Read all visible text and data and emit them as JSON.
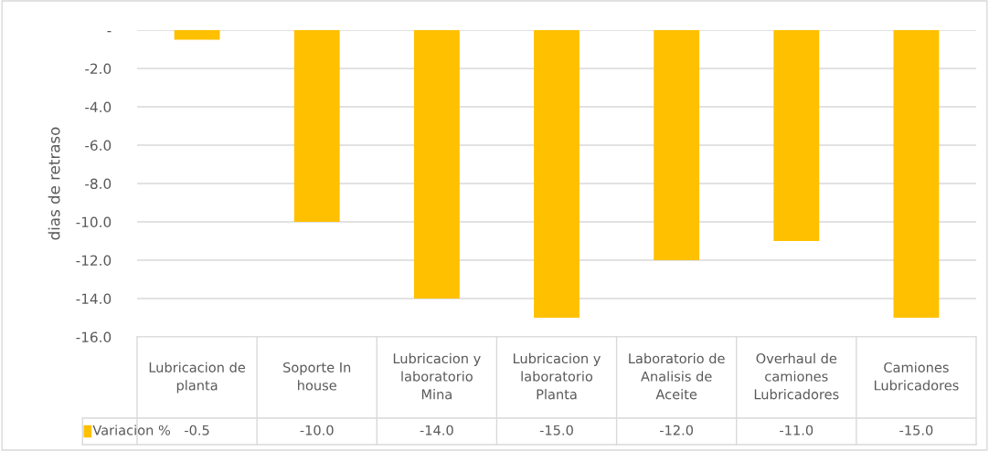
{
  "chart_data": {
    "type": "bar",
    "ylabel": "dias de retraso",
    "categories": [
      "Lubricacion de planta",
      "Soporte In house",
      "Lubricacion y laboratorio Mina",
      "Lubricacion y laboratorio Planta",
      "Laboratorio de Analisis de Aceite",
      "Overhaul de camiones Lubricadores",
      "Camiones Lubricadores"
    ],
    "series": [
      {
        "name": "Variacion %",
        "color": "#ffc000",
        "values": [
          -0.5,
          -10.0,
          -14.0,
          -15.0,
          -12.0,
          -11.0,
          -15.0
        ],
        "value_labels": [
          "-0.5",
          "-10.0",
          "-14.0",
          "-15.0",
          "-12.0",
          "-11.0",
          "-15.0"
        ]
      }
    ],
    "ylim": [
      -16,
      0
    ],
    "yticks": [
      {
        "value": 0,
        "label": "-"
      },
      {
        "value": -2,
        "label": "-2.0"
      },
      {
        "value": -4,
        "label": "-4.0"
      },
      {
        "value": -6,
        "label": "-6.0"
      },
      {
        "value": -8,
        "label": "-8.0"
      },
      {
        "value": -10,
        "label": "-10.0"
      },
      {
        "value": -12,
        "label": "-12.0"
      },
      {
        "value": -14,
        "label": "-14.0"
      },
      {
        "value": -16,
        "label": "-16.0"
      }
    ],
    "grid": "y",
    "legend": "bottom left"
  }
}
